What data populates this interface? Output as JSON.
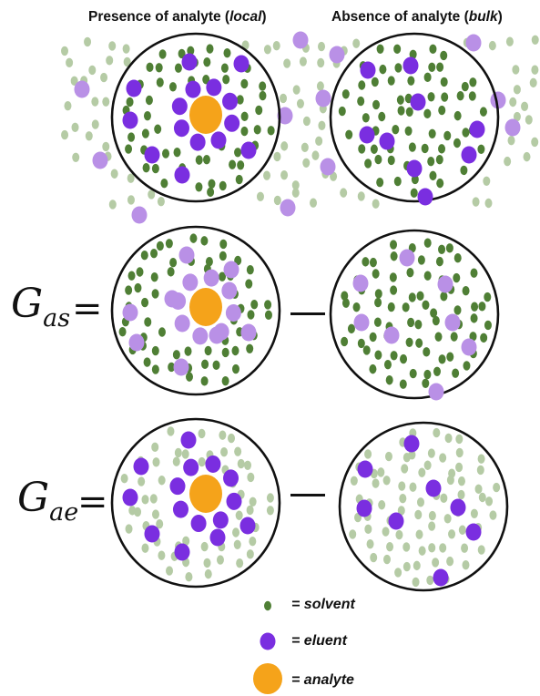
{
  "headers": {
    "presence_prefix": "Presence of analyte (",
    "presence_term": "local",
    "presence_suffix": ")",
    "absence_prefix": "Absence of analyte (",
    "absence_term": "bulk",
    "absence_suffix": ")"
  },
  "equations": [
    {
      "symbol": "G",
      "subscript": "as",
      "equals": "="
    },
    {
      "symbol": "G",
      "subscript": "ae",
      "equals": "="
    }
  ],
  "legend": [
    {
      "label": "= solvent",
      "item": "solvent"
    },
    {
      "label": "= eluent",
      "item": "eluent"
    },
    {
      "label": "= analyte",
      "item": "analyte"
    }
  ],
  "colors": {
    "solvent": "#4f7f35",
    "solvent_faded": "#b5cba5",
    "eluent": "#7a2ee0",
    "eluent_faded": "#b990e6",
    "analyte": "#f5a31a",
    "outline": "#111111"
  }
}
